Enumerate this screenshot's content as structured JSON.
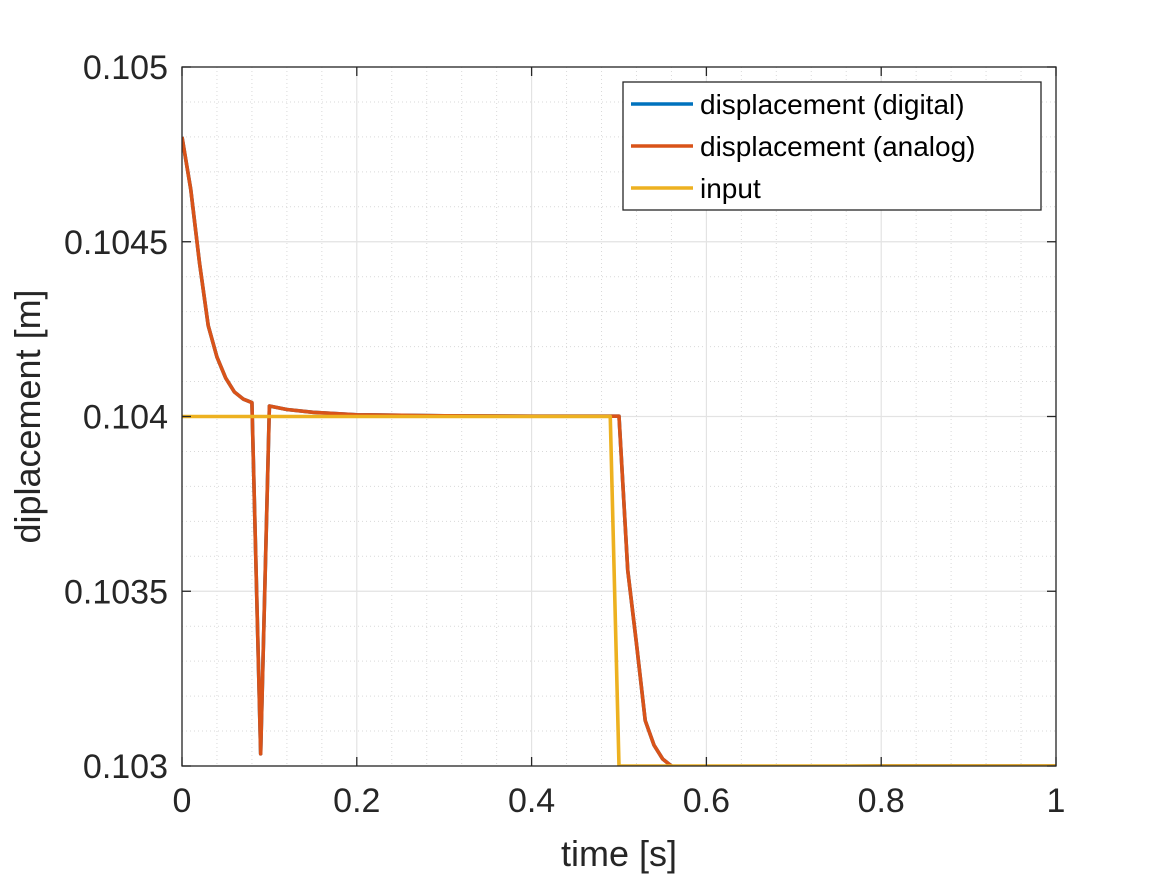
{
  "chart_data": {
    "type": "line",
    "title": "",
    "xlabel": "time [s]",
    "ylabel": "diplacement [m]",
    "xlim": [
      0,
      1
    ],
    "ylim": [
      0.103,
      0.105
    ],
    "xticks": [
      0,
      0.2,
      0.4,
      0.6,
      0.8,
      1
    ],
    "xtick_labels": [
      "0",
      "0.2",
      "0.4",
      "0.6",
      "0.8",
      "1"
    ],
    "yticks": [
      0.103,
      0.1035,
      0.104,
      0.1045,
      0.105
    ],
    "ytick_labels": [
      "0.103",
      "0.1035",
      "0.104",
      "0.1045",
      "0.105"
    ],
    "grid": true,
    "minor_grid": true,
    "legend_position": "top-right",
    "series": [
      {
        "name": "displacement (digital)",
        "color": "#0072BD",
        "x": [
          0,
          0.01,
          0.02,
          0.03,
          0.04,
          0.05,
          0.06,
          0.07,
          0.08,
          0.09,
          0.1,
          0.12,
          0.15,
          0.2,
          0.3,
          0.4,
          0.49,
          0.5,
          0.51,
          0.52,
          0.53,
          0.54,
          0.55,
          0.56,
          0.57,
          0.58,
          0.6,
          0.65,
          0.7,
          0.8,
          0.9,
          1
        ],
        "y": [
          0.1048,
          0.10465,
          0.10444,
          0.10426,
          0.10417,
          0.10411,
          0.10407,
          0.10405,
          0.10404,
          0.103035,
          0.10403,
          0.10402,
          0.104012,
          0.104005,
          0.104002,
          0.104001,
          0.104001,
          0.104001,
          0.10356,
          0.10335,
          0.10313,
          0.10306,
          0.10302,
          0.103,
          0.102995,
          0.10299,
          0.102992,
          0.102995,
          0.102998,
          0.103,
          0.103,
          0.103
        ]
      },
      {
        "name": "displacement (analog)",
        "color": "#D95319",
        "x": [
          0,
          0.01,
          0.02,
          0.03,
          0.04,
          0.05,
          0.06,
          0.07,
          0.08,
          0.09,
          0.1,
          0.12,
          0.15,
          0.2,
          0.3,
          0.4,
          0.49,
          0.5,
          0.51,
          0.52,
          0.53,
          0.54,
          0.55,
          0.56,
          0.57,
          0.58,
          0.6,
          0.65,
          0.7,
          0.8,
          0.9,
          1
        ],
        "y": [
          0.1048,
          0.10465,
          0.10444,
          0.10426,
          0.10417,
          0.10411,
          0.10407,
          0.10405,
          0.10404,
          0.103035,
          0.10403,
          0.10402,
          0.104012,
          0.104005,
          0.104002,
          0.104001,
          0.104001,
          0.104001,
          0.10356,
          0.10335,
          0.10313,
          0.10306,
          0.10302,
          0.103,
          0.102995,
          0.10299,
          0.102992,
          0.102995,
          0.102998,
          0.103,
          0.103,
          0.103
        ]
      },
      {
        "name": "input",
        "color": "#EDB120",
        "x": [
          0,
          0.49,
          0.5,
          1
        ],
        "y": [
          0.104,
          0.104,
          0.103,
          0.103
        ]
      }
    ]
  }
}
